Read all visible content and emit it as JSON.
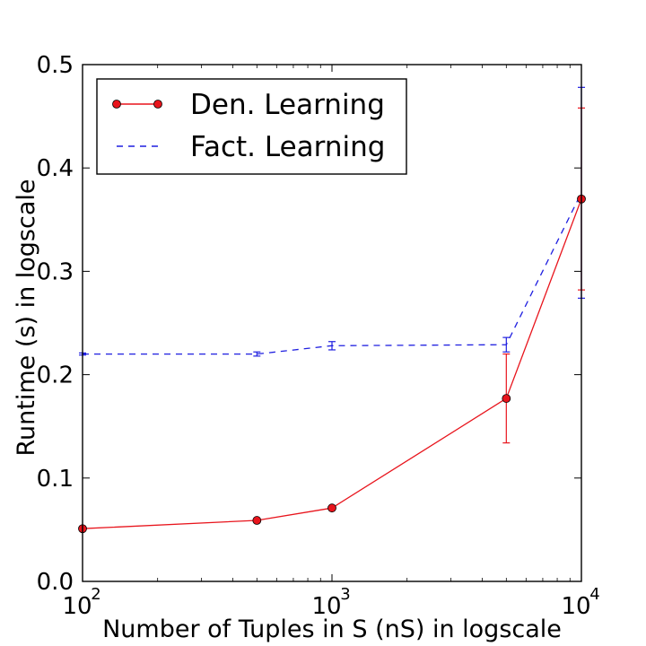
{
  "chart_data": {
    "type": "line",
    "title": "",
    "xlabel": "Number of Tuples in S (nS) in logscale",
    "ylabel": "Runtime (s) in logscale",
    "xscale": "log",
    "xlim": [
      100,
      10000
    ],
    "ylim": [
      0.0,
      0.5
    ],
    "x_ticks": [
      {
        "value": 100,
        "base": "10",
        "exp": "2"
      },
      {
        "value": 1000,
        "base": "10",
        "exp": "3"
      },
      {
        "value": 10000,
        "base": "10",
        "exp": "4"
      }
    ],
    "y_ticks": [
      {
        "value": 0.0,
        "label": "0.0"
      },
      {
        "value": 0.1,
        "label": "0.1"
      },
      {
        "value": 0.2,
        "label": "0.2"
      },
      {
        "value": 0.3,
        "label": "0.3"
      },
      {
        "value": 0.4,
        "label": "0.4"
      },
      {
        "value": 0.5,
        "label": "0.5"
      }
    ],
    "grid": false,
    "legend_position": "top-left",
    "series": [
      {
        "name": "Den. Learning",
        "color": "#e8141c",
        "line_style": "solid",
        "marker": "circle",
        "x": [
          100,
          500,
          1000,
          5000,
          10000
        ],
        "y": [
          0.051,
          0.059,
          0.071,
          0.177,
          0.37
        ],
        "err": [
          0.0,
          0.0,
          0.0,
          0.043,
          0.088
        ]
      },
      {
        "name": "Fact. Learning",
        "color": "#1f1fe0",
        "line_style": "dashed",
        "marker": "none",
        "x": [
          100,
          500,
          1000,
          5000,
          10000
        ],
        "y": [
          0.22,
          0.22,
          0.228,
          0.229,
          0.376
        ],
        "err": [
          0.001,
          0.002,
          0.004,
          0.007,
          0.102
        ]
      }
    ]
  }
}
